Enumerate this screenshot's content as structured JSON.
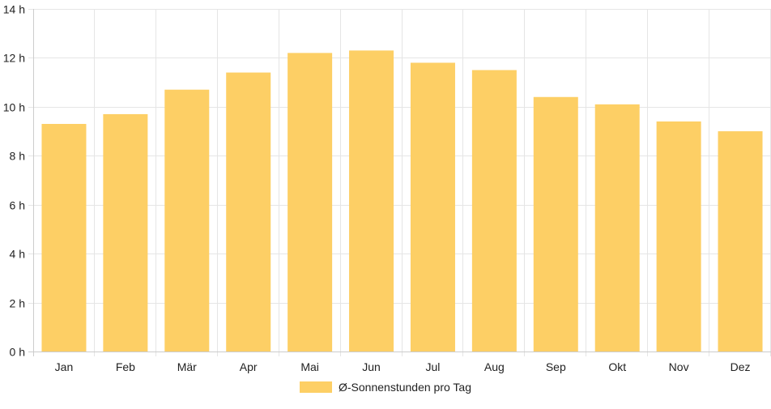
{
  "chart_data": {
    "type": "bar",
    "categories": [
      "Jan",
      "Feb",
      "Mär",
      "Apr",
      "Mai",
      "Jun",
      "Jul",
      "Aug",
      "Sep",
      "Okt",
      "Nov",
      "Dez"
    ],
    "series": [
      {
        "name": "Ø-Sonnenstunden pro Tag",
        "values": [
          9.3,
          9.7,
          10.7,
          11.4,
          12.2,
          12.3,
          11.8,
          11.5,
          10.4,
          10.1,
          9.4,
          9.0
        ]
      }
    ],
    "y_ticks": [
      "0 h",
      "2 h",
      "4 h",
      "6 h",
      "8 h",
      "10 h",
      "12 h",
      "14 h"
    ],
    "ylim": [
      0,
      14
    ],
    "y_unit": "h",
    "grid": true,
    "legend_position": "bottom",
    "colors": {
      "bar": "#fdcf65",
      "grid": "#e5e5e5",
      "axis": "#cccccc",
      "text": "#222222"
    }
  }
}
